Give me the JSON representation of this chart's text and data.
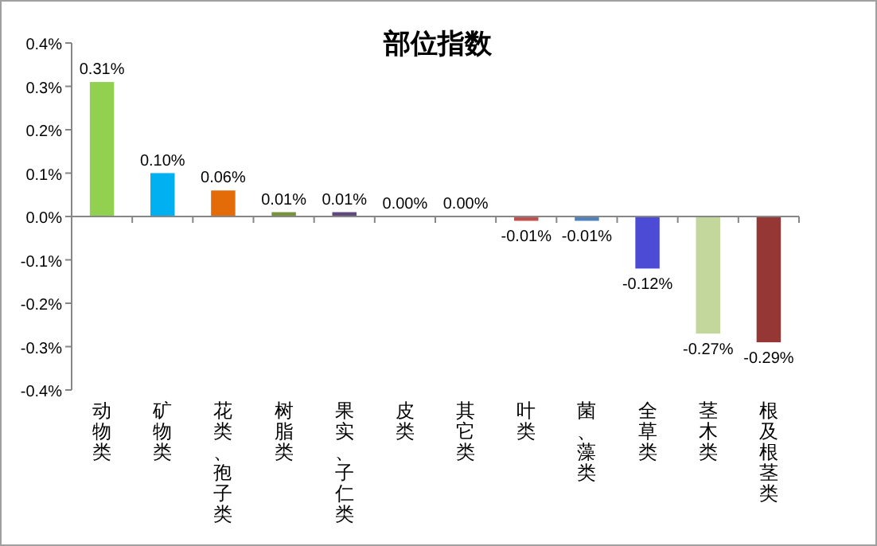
{
  "chart_data": {
    "type": "bar",
    "title": "部位指数",
    "categories": [
      "动物类",
      "矿物类",
      "花类、孢子类",
      "树脂类",
      "果实、子仁类",
      "皮类",
      "其它类",
      "叶类",
      "菌、藻类",
      "全草类",
      "茎木类",
      "根及根茎类"
    ],
    "values": [
      0.31,
      0.1,
      0.06,
      0.01,
      0.01,
      0.0,
      0.0,
      -0.01,
      -0.01,
      -0.12,
      -0.27,
      -0.29
    ],
    "colors": [
      "#92d050",
      "#00b0f0",
      "#e36c09",
      "#77933c",
      "#604a7b",
      "#4f81bd",
      "#4f81bd",
      "#c0504d",
      "#4f81bd",
      "#4b4bd6",
      "#c3d69b",
      "#953735"
    ],
    "value_labels": [
      "0.31%",
      "0.10%",
      "0.06%",
      "0.01%",
      "0.01%",
      "0.00%",
      "0.00%",
      "-0.01%",
      "-0.01%",
      "-0.12%",
      "-0.27%",
      "-0.29%"
    ],
    "ylim": [
      -0.4,
      0.4
    ],
    "yticks": [
      {
        "value": -0.4,
        "label": "-0.4%"
      },
      {
        "value": -0.3,
        "label": "-0.3%"
      },
      {
        "value": -0.2,
        "label": "-0.2%"
      },
      {
        "value": -0.1,
        "label": "-0.1%"
      },
      {
        "value": 0,
        "label": "0.0%"
      },
      {
        "value": 0.1,
        "label": "0.1%"
      },
      {
        "value": 0.2,
        "label": "0.2%"
      },
      {
        "value": 0.3,
        "label": "0.3%"
      },
      {
        "value": 0.4,
        "label": "0.4%"
      }
    ]
  }
}
